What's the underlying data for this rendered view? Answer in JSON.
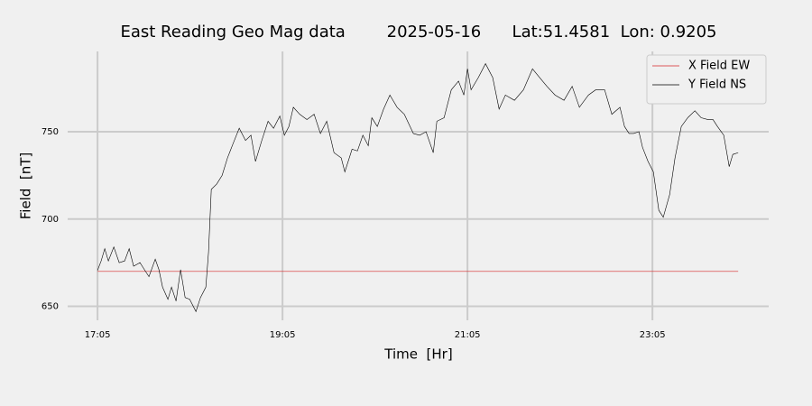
{
  "chart_data": {
    "type": "line",
    "title": "East Reading Geo Mag data        2025-05-16      Lat:51.4581  Lon: 0.9205",
    "x_label": "Time  [Hr]",
    "y_label": "Field  [nT]",
    "xlim": [
      16.76,
      24.34
    ],
    "ylim": [
      642,
      796
    ],
    "xticks": [
      {
        "value": 17.083,
        "label": "17:05"
      },
      {
        "value": 19.083,
        "label": "19:05"
      },
      {
        "value": 21.083,
        "label": "21:05"
      },
      {
        "value": 23.083,
        "label": "23:05"
      }
    ],
    "yticks": [
      650,
      700,
      750
    ],
    "grid": true,
    "legend": "upper right",
    "series": [
      {
        "name": "X Field EW",
        "color": "#d62728",
        "x": [
          17.083,
          24.01
        ],
        "values": [
          670,
          670
        ]
      },
      {
        "name": "Y Field NS",
        "color": "#000000",
        "x": [
          17.083,
          17.122,
          17.161,
          17.2,
          17.259,
          17.317,
          17.376,
          17.425,
          17.473,
          17.542,
          17.59,
          17.639,
          17.707,
          17.747,
          17.786,
          17.844,
          17.883,
          17.932,
          17.981,
          18.03,
          18.079,
          18.147,
          18.196,
          18.254,
          18.283,
          18.313,
          18.371,
          18.43,
          18.488,
          18.547,
          18.615,
          18.683,
          18.742,
          18.791,
          18.859,
          18.927,
          18.986,
          19.054,
          19.103,
          19.152,
          19.2,
          19.269,
          19.347,
          19.425,
          19.493,
          19.561,
          19.64,
          19.718,
          19.757,
          19.835,
          19.893,
          19.952,
          20.01,
          20.049,
          20.108,
          20.176,
          20.244,
          20.322,
          20.4,
          20.498,
          20.566,
          20.635,
          20.713,
          20.752,
          20.83,
          20.908,
          20.986,
          21.044,
          21.083,
          21.122,
          21.2,
          21.278,
          21.356,
          21.425,
          21.493,
          21.591,
          21.688,
          21.786,
          21.864,
          21.942,
          22.03,
          22.127,
          22.215,
          22.293,
          22.391,
          22.469,
          22.566,
          22.644,
          22.732,
          22.781,
          22.83,
          22.879,
          22.937,
          22.976,
          23.035,
          23.093,
          23.152,
          23.2,
          23.269,
          23.327,
          23.395,
          23.464,
          23.542,
          23.61,
          23.679,
          23.737,
          23.786,
          23.854,
          23.913,
          23.952,
          24.01
        ],
        "values": [
          670.6,
          676,
          683,
          676,
          684,
          675,
          676,
          683,
          673,
          675,
          671,
          667,
          677,
          671,
          661,
          654,
          661,
          653,
          671,
          655,
          654,
          647,
          655,
          661,
          681,
          717,
          720,
          725,
          735,
          743,
          752,
          745,
          748,
          733,
          745,
          756,
          752,
          759,
          748,
          753,
          764,
          760,
          757,
          760,
          749,
          756,
          738,
          735,
          727,
          740,
          739,
          748,
          742,
          758,
          753,
          763,
          771,
          764,
          760,
          749,
          748,
          750,
          738,
          756,
          758,
          774,
          779,
          771,
          786,
          774,
          781,
          789,
          781,
          763,
          771,
          768,
          774,
          786,
          781,
          776,
          771,
          768,
          776,
          764,
          771,
          774,
          774,
          760,
          764,
          753,
          749,
          749,
          750,
          741,
          733,
          727,
          705,
          701,
          714,
          735,
          753,
          758,
          762,
          758,
          757,
          757,
          753,
          748,
          730,
          737,
          738
        ]
      }
    ]
  }
}
